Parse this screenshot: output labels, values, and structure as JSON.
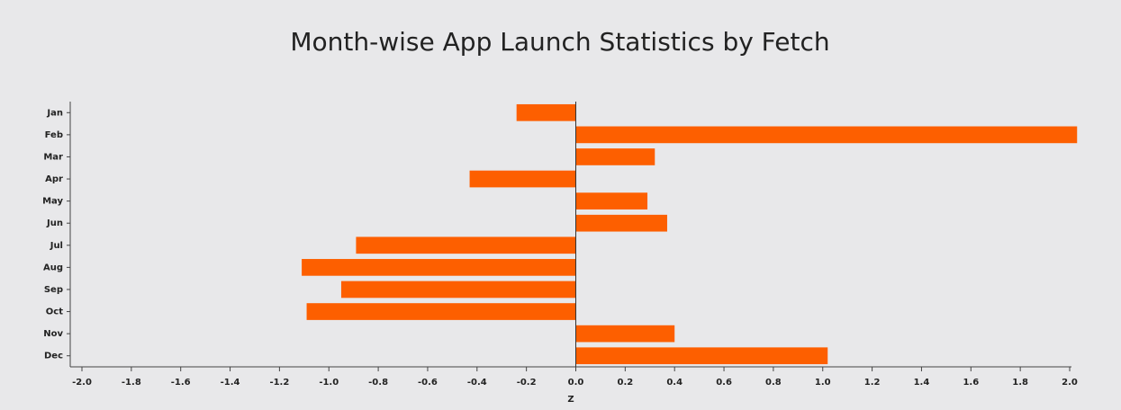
{
  "chart_data": {
    "type": "bar",
    "orientation": "horizontal",
    "title": "Month-wise App Launch Statistics by Fetch",
    "x_label": "Z",
    "categories": [
      "Jan",
      "Feb",
      "Mar",
      "Apr",
      "May",
      "Jun",
      "Jul",
      "Aug",
      "Sep",
      "Oct",
      "Nov",
      "Dec"
    ],
    "values": [
      -0.24,
      2.03,
      0.32,
      -0.43,
      0.29,
      0.37,
      -0.89,
      -1.11,
      -0.95,
      -1.09,
      0.4,
      1.02
    ],
    "color": "#fd5f00",
    "xlim": [
      -2.0,
      2.0
    ],
    "xticks": [
      {
        "value": -2.0,
        "label": "-2.0"
      },
      -1.8,
      -1.6,
      -1.4,
      -1.2,
      {
        "value": -1.0,
        "label": "-1.0"
      },
      -0.8,
      -0.6,
      -0.4,
      -0.2,
      {
        "value": 0,
        "label": "0.0"
      },
      0.2,
      0.4,
      0.6,
      0.8,
      {
        "value": 1.0,
        "label": "1.0"
      },
      1.2,
      1.4,
      1.6,
      1.8,
      {
        "value": 2.0,
        "label": "2.0"
      }
    ]
  }
}
